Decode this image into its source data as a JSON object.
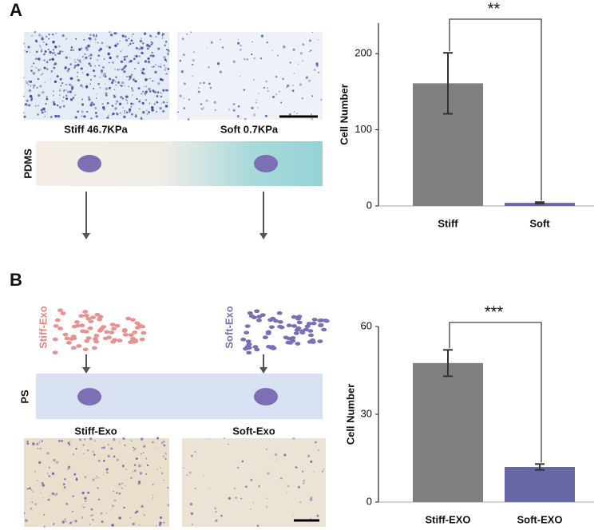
{
  "panels": [
    {
      "label": "A",
      "captions": [
        "Stiff 46.7KPa",
        "Soft 0.7KPa"
      ],
      "substrate": "PDMS"
    },
    {
      "label": "B",
      "exosomes": [
        "Stiff-Exo",
        "Soft-Exo"
      ],
      "substrate": "PS",
      "captions": [
        "Stiff-Exo",
        "Soft-Exo"
      ]
    }
  ],
  "chart_data": [
    {
      "type": "bar",
      "y_label": "Cell Number",
      "categories": [
        "Stiff",
        "Soft"
      ],
      "values": [
        161,
        4
      ],
      "errors": [
        40,
        1
      ],
      "colors": [
        "#808080",
        "#6767a6"
      ],
      "ylim": [
        0,
        240
      ],
      "yticks": [
        0,
        100,
        200
      ],
      "annotation": "**"
    },
    {
      "type": "bar",
      "y_label": "Cell Number",
      "categories": [
        "Stiff-EXO",
        "Soft-EXO"
      ],
      "values": [
        47.5,
        12
      ],
      "errors": [
        4.5,
        1
      ],
      "colors": [
        "#808080",
        "#6767a6"
      ],
      "ylim": [
        0,
        60
      ],
      "yticks": [
        0,
        30,
        60
      ],
      "annotation": "***"
    }
  ]
}
